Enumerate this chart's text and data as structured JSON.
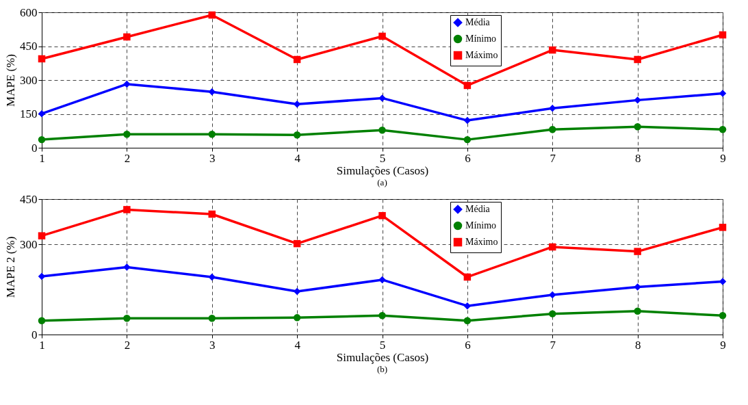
{
  "chart_data": [
    {
      "type": "line",
      "xlabel": "Simulações (Casos)",
      "ylabel": "MAPE  (%)",
      "annotations": [
        "(a)"
      ],
      "x": [
        1,
        2,
        3,
        4,
        5,
        6,
        7,
        8,
        9
      ],
      "xlim": [
        1,
        9
      ],
      "xticks": [
        1,
        2,
        3,
        4,
        5,
        6,
        7,
        8,
        9
      ],
      "ylim": [
        0,
        600
      ],
      "yticks": [
        0,
        150,
        300,
        450,
        600
      ],
      "grid": true,
      "legend": "top",
      "series": [
        {
          "name": "Média",
          "color": "#0000ff",
          "marker": "diamond",
          "values": [
            151,
            282,
            248,
            193,
            220,
            121,
            175,
            211,
            241
          ]
        },
        {
          "name": "Mínimo",
          "color": "#008000",
          "marker": "circle",
          "values": [
            36,
            60,
            60,
            57,
            78,
            36,
            81,
            93,
            81
          ]
        },
        {
          "name": "Máximo",
          "color": "#ff0000",
          "marker": "square",
          "values": [
            394,
            491,
            588,
            391,
            494,
            276,
            433,
            391,
            500
          ]
        }
      ]
    },
    {
      "type": "line",
      "xlabel": "Simulações (Casos)",
      "ylabel": "MAPE 2 (%)",
      "annotations": [
        "(b)"
      ],
      "x": [
        1,
        2,
        3,
        4,
        5,
        6,
        7,
        8,
        9
      ],
      "xlim": [
        1,
        9
      ],
      "xticks": [
        1,
        2,
        3,
        4,
        5,
        6,
        7,
        8,
        9
      ],
      "ylim": [
        0,
        450
      ],
      "yticks": [
        0,
        300,
        450
      ],
      "grid": true,
      "legend": "top",
      "series": [
        {
          "name": "Média",
          "color": "#0000ff",
          "marker": "diamond",
          "values": [
            193,
            224,
            191,
            143,
            182,
            95,
            132,
            158,
            176
          ]
        },
        {
          "name": "Mínimo",
          "color": "#008000",
          "marker": "circle",
          "values": [
            46,
            54,
            54,
            56,
            63,
            46,
            69,
            78,
            63
          ]
        },
        {
          "name": "Máximo",
          "color": "#ff0000",
          "marker": "square",
          "values": [
            328,
            415,
            400,
            302,
            395,
            191,
            291,
            276,
            356
          ]
        }
      ]
    }
  ]
}
